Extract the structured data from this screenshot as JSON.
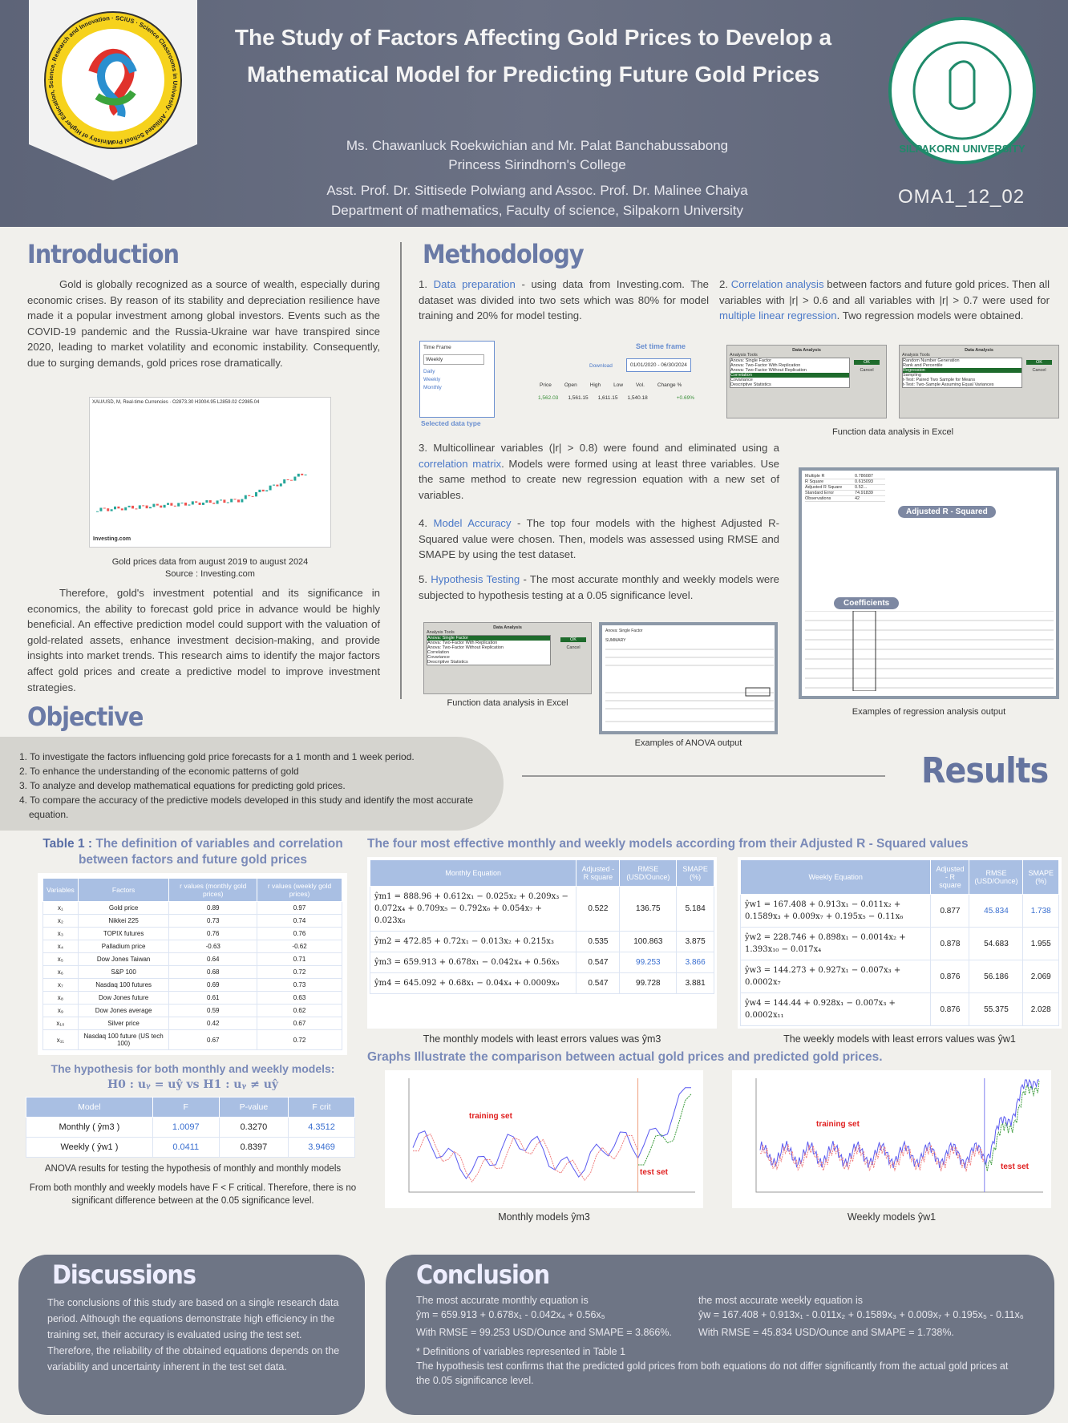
{
  "header": {
    "title": "The Study of Factors Affecting Gold Prices to Develop a Mathematical Model for Predicting Future Gold Prices",
    "authors": "Ms. Chawanluck Roekwichian  and Mr. Palat Banchabussabong",
    "school": "Princess Sirindhorn's College",
    "advisors": "Asst. Prof. Dr. Sittisede Polwiang and Assoc. Prof. Dr. Malinee Chaiya",
    "department": "Department of mathematics, Faculty of science, Silpakorn University",
    "code": "OMA1_12_02",
    "left_logo_text": "Ministry of Higher Education, Science, Research and Innovation · SCiUS · Science Classrooms in University - Affiliated School Project",
    "right_logo_text": "SILPAKORN UNIVERSITY"
  },
  "intro": {
    "title": "Introduction",
    "p1": "Gold is globally recognized as a source of wealth, especially during economic crises. By reason of its stability and depreciation resilience have made it a popular investment among global investors. Events such as the COVID-19 pandemic and the Russia-Ukraine war have transpired since 2020, leading to market volatility and economic instability. Consequently, due to surging demands, gold prices rose dramatically.",
    "chart_header": "XAU/USD, M, Real-time Currencies · O2873.30 H3004.95 L2859.02 C2985.04",
    "chart_brand": "Investing.com",
    "caption1": "Gold prices data from august 2019 to august 2024",
    "caption2": "Source : Investing.com",
    "p2": "Therefore, gold's investment potential and its significance in economics, the ability to forecast gold price in advance would be highly beneficial. An effective prediction model could support with the valuation of gold-related assets, enhance investment decision-making, and provide insights into market trends. This research aims to identify the major factors affect gold prices and create a predictive model to improve investment strategies."
  },
  "objective": {
    "title": "Objective",
    "items": [
      "1. To investigate the factors influencing gold price forecasts for a 1 month and 1 week period.",
      "2. To enhance the understanding of the economic patterns of gold",
      "3. To analyze and develop mathematical equations for predicting gold prices.",
      "4. To compare the accuracy of the predictive models developed in this study and identify the most accurate equation."
    ]
  },
  "methodology": {
    "title": "Methodology",
    "s1_num": "1.",
    "s1_link": "Data preparation",
    "s1_text": " - using data from Investing.com. The dataset was divided into two sets which was 80% for model training and 20% for model testing.",
    "s2_num": "2.",
    "s2_link": "Correlation analysis",
    "s2_text": " between factors and future gold prices. Then all variables with |r| > 0.6 and all variables with |r| > 0.7 were used for ",
    "s2_link2": "multiple linear regression",
    "s2_tail": ". Two regression models were obtained.",
    "timeframe": {
      "label": "Time Frame",
      "selected": "Weekly",
      "options": [
        "Daily",
        "Weekly",
        "Monthly"
      ],
      "download": "Download",
      "range": "01/01/2020 - 06/30/2024",
      "set_label": "Set time frame",
      "selected_label": "Selected data type",
      "cols": [
        "Price",
        "Open",
        "High",
        "Low",
        "Vol.",
        "Change %"
      ],
      "row": [
        "1,562.03",
        "1,561.15",
        "1,611.15",
        "1,540.18",
        "",
        "+0.69%"
      ]
    },
    "excel_caption": "Function data analysis in Excel",
    "excel1": {
      "title": "Data Analysis",
      "tools_label": "Analysis Tools",
      "items": [
        "Anova: Single Factor",
        "Anova: Two-Factor With Replication",
        "Anova: Two-Factor Without Replication",
        "Correlation",
        "Covariance",
        "Descriptive Statistics"
      ],
      "ok": "OK",
      "cancel": "Cancel"
    },
    "excel2": {
      "title": "Data Analysis",
      "tools_label": "Analysis Tools",
      "items": [
        "Random Number Generation",
        "Rank and Percentile",
        "Regression",
        "Sampling",
        "t-Test: Paired Two Sample for Means",
        "t-Test: Two-Sample Assuming Equal Variances"
      ],
      "ok": "OK",
      "cancel": "Cancel"
    },
    "s3_pre": "3. Multicollinear variables (|r| > 0.8) were found and eliminated using a ",
    "s3_link": "correlation matrix",
    "s3_text": ". Models were formed using at least three variables. Use the same method to create new regression equation with a new set of variables.",
    "s4_num": "4.",
    "s4_link": "Model Accuracy",
    "s4_text": " - The top four models with the highest Adjusted R-Squared value were chosen. Then, models was assessed using RMSE and SMAPE by using the test dataset.",
    "s5_num": "5.",
    "s5_link": "Hypothesis Testing",
    "s5_text": " - The most accurate monthly and weekly models were subjected to hypothesis testing at a 0.05 significance level.",
    "regression_tag1": "Adjusted R - Squared",
    "regression_tag2": "Coefficients",
    "regression_caption": "Examples of regression analysis output",
    "regression_rows": [
      [
        "Multiple R",
        "0.786087"
      ],
      [
        "R Square",
        "0.615093"
      ],
      [
        "Adjusted R Square",
        "0.52..."
      ],
      [
        "Standard Error",
        "74.91839"
      ],
      [
        "Observations",
        "42"
      ]
    ],
    "anova_caption": "Examples of ANOVA output",
    "anova_title": "Anova: Single Factor",
    "anova_summary": "SUMMARY"
  },
  "results": {
    "title": "Results",
    "table1_prefix": "Table 1 :",
    "table1_title": " The definition of variables and correlation between factors and future gold prices",
    "table1_headers": [
      "Variables",
      "Factors",
      "r values (monthly gold prices)",
      "r values (weekly gold prices)"
    ],
    "table1_rows": [
      [
        "x₁",
        "Gold price",
        "0.89",
        "0.97"
      ],
      [
        "x₂",
        "Nikkei 225",
        "0.73",
        "0.74"
      ],
      [
        "x₃",
        "TOPIX futures",
        "0.76",
        "0.76"
      ],
      [
        "x₄",
        "Palladium price",
        "-0.63",
        "-0.62"
      ],
      [
        "x₅",
        "Dow Jones Taiwan",
        "0.64",
        "0.71"
      ],
      [
        "x₆",
        "S&P 100",
        "0.68",
        "0.72"
      ],
      [
        "x₇",
        "Nasdaq 100 futures",
        "0.69",
        "0.73"
      ],
      [
        "x₈",
        "Dow Jones future",
        "0.61",
        "0.63"
      ],
      [
        "x₉",
        "Dow Jones average",
        "0.59",
        "0.62"
      ],
      [
        "x₁₀",
        "Silver price",
        "0.42",
        "0.67"
      ],
      [
        "x₁₁",
        "Nasdaq 100 future (US tech 100)",
        "0.67",
        "0.72"
      ]
    ],
    "hyp_title": "The hypothesis for both monthly and weekly models:",
    "hyp_formula": "H0 : uᵧ = uŷ   vs   H1 : uᵧ ≠ uŷ",
    "hyp_headers": [
      "Model",
      "F",
      "P-value",
      "F crit"
    ],
    "hyp_rows": [
      [
        "Monthly ( ŷm3 )",
        "1.0097",
        "0.3270",
        "4.3512"
      ],
      [
        "Weekly ( ŷw1 )",
        "0.0411",
        "0.8397",
        "3.9469"
      ]
    ],
    "hyp_caption": "ANOVA results for testing the hypothesis of monthly and monthly models",
    "hyp_conclusion": "From both monthly and weekly models have F < F critical. Therefore, there is no significant difference between at the 0.05 significance level.",
    "models_title": "The four most effective monthly and weekly models according from their Adjusted R - Squared values",
    "monthly_headers": [
      "Monthly Equation",
      "Adjusted - R square",
      "RMSE (USD/Ounce)",
      "SMAPE (%)"
    ],
    "monthly_rows": [
      [
        "ŷm1 = 888.96 + 0.612x₁ − 0.025x₂ + 0.209x₃ − 0.072x₄ + 0.709x₅ − 0.792x₆ + 0.054x₇ + 0.023x₈",
        "0.522",
        "136.75",
        "5.184"
      ],
      [
        "ŷm2 = 472.85 + 0.72x₁ − 0.013x₂ + 0.215x₃",
        "0.535",
        "100.863",
        "3.875"
      ],
      [
        "ŷm3 = 659.913 + 0.678x₁ − 0.042x₄ + 0.56x₅",
        "0.547",
        "99.253",
        "3.866"
      ],
      [
        "ŷm4 = 645.092 + 0.68x₁ − 0.04x₄ + 0.0009x₉",
        "0.547",
        "99.728",
        "3.881"
      ]
    ],
    "weekly_headers": [
      "Weekly Equation",
      "Adjusted - R square",
      "RMSE (USD/Ounce)",
      "SMAPE (%)"
    ],
    "weekly_rows": [
      [
        "ŷw1 = 167.408 + 0.913x₁ − 0.011x₂ + 0.1589x₃ + 0.009x₇ + 0.195x₅ − 0.11x₆",
        "0.877",
        "45.834",
        "1.738"
      ],
      [
        "ŷw2 = 228.746 + 0.898x₁ − 0.0014x₂ + 1.393x₁₀ − 0.017x₄",
        "0.878",
        "54.683",
        "1.955"
      ],
      [
        "ŷw3 = 144.273 + 0.927x₁ − 0.007x₃ + 0.0002x₇",
        "0.876",
        "56.186",
        "2.069"
      ],
      [
        "ŷw4 = 144.44 + 0.928x₁ − 0.007x₃ + 0.0002x₁₁",
        "0.876",
        "55.375",
        "2.028"
      ]
    ],
    "monthly_note": "The monthly models with least errors values was ŷm3",
    "weekly_note": "The weekly models with least errors values was ŷw1",
    "graphs_title": "Graphs Illustrate the comparison between actual gold prices and predicted gold prices.",
    "train_label": "training set",
    "test_label": "test set",
    "monthly_graph_caption": "Monthly models ŷm3",
    "weekly_graph_caption": "Weekly models ŷw1"
  },
  "discussions": {
    "title": "Discussions",
    "text": "The conclusions of this study are based on a single research data period. Although the equations demonstrate high efficiency in the training set, their accuracy is evaluated using the test set. Therefore, the reliability of the obtained equations depends on the variability and uncertainty inherent in the test set data."
  },
  "conclusion": {
    "title": "Conclusion",
    "m_intro": "The most accurate monthly equation is",
    "m_eq": "ŷm = 659.913 + 0.678x₁ - 0.042x₄ + 0.56x₅",
    "m_err": "With RMSE = 99.253 USD/Ounce and SMAPE = 3.866%.",
    "w_intro": "the most accurate weekly equation is",
    "w_eq": "ŷw = 167.408 + 0.913x₁ - 0.011x₂ + 0.1589x₃ + 0.009x₇ + 0.195x₅ - 0.11x₆",
    "w_err": "With RMSE = 45.834 USD/Ounce and SMAPE = 1.738%.",
    "note": "*  Definitions of variables represented in Table 1",
    "final": "The hypothesis test confirms that the predicted gold prices from both equations do not differ significantly from the actual gold prices at the 0.05 significance level."
  },
  "colors": {
    "header": "#5d6478",
    "heading": "#6a7aa6",
    "table_header": "#a9bfe3",
    "link": "#4a78c8",
    "box": "#6e7585"
  }
}
